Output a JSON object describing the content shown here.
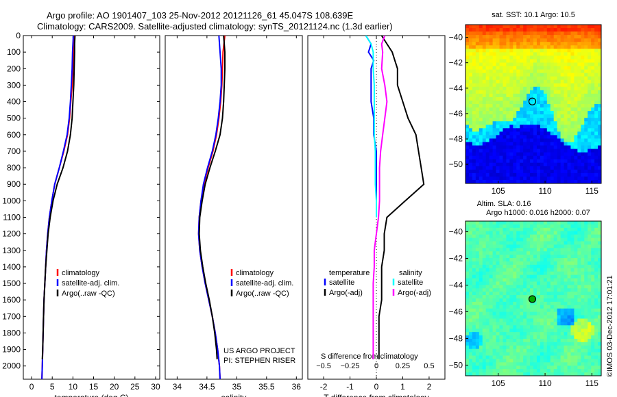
{
  "header": {
    "line1": "Argo profile: AO 1901407_103 25-Nov-2012 20121126_61 45.047S 108.639E",
    "line2": "Climatology: CARS2009. Satellite-adjusted climatology: synTS_20121124.nc (1.3d earlier)"
  },
  "footer": {
    "project": "US ARGO PROJECT",
    "pi": "PI: STEPHEN RISER",
    "imos": "©IMOS 03-Dec-2012 17:01:21"
  },
  "colors": {
    "climatology": "#ff0000",
    "satellite": "#0000ff",
    "argo": "#000000",
    "salinity_clim": "#ff00ff",
    "salinity_sat": "#00ffff"
  },
  "chart_data": [
    {
      "type": "line",
      "xlabel": "temperature (deg C)",
      "ylabel": "",
      "xlim": [
        -2,
        31
      ],
      "ylim": [
        2080,
        0
      ],
      "xticks": [
        0,
        5,
        10,
        15,
        20,
        25,
        30
      ],
      "yticks": [
        0,
        100,
        200,
        300,
        400,
        500,
        600,
        700,
        800,
        900,
        1000,
        1100,
        1200,
        1300,
        1400,
        1500,
        1600,
        1700,
        1800,
        1900,
        2000
      ],
      "legend": [
        "climatology",
        "satellite-adj. clim.",
        "Argo(..raw -QC)"
      ],
      "legend_position": "lower-right",
      "series": [
        {
          "name": "climatology",
          "color": "#ff0000",
          "y": [
            0,
            50,
            100,
            200,
            300,
            400,
            500,
            600,
            700,
            800,
            900,
            1000,
            1100,
            1200,
            1300,
            1400,
            1500,
            1600,
            1700,
            1800,
            1900,
            2000,
            2080
          ],
          "x": [
            10.4,
            10.3,
            10.2,
            10.0,
            9.8,
            9.5,
            9.2,
            8.7,
            7.8,
            6.7,
            5.6,
            4.9,
            4.3,
            3.9,
            3.6,
            3.4,
            3.2,
            3.0,
            2.9,
            2.8,
            2.7,
            2.6,
            2.5
          ]
        },
        {
          "name": "satellite-adj. clim.",
          "color": "#0000ff",
          "y": [
            0,
            50,
            100,
            200,
            300,
            400,
            500,
            600,
            700,
            800,
            900,
            1000,
            1100,
            1200,
            1300,
            1400,
            1500,
            1600,
            1700,
            1800,
            1900,
            2000,
            2080
          ],
          "x": [
            10.1,
            10.0,
            9.9,
            9.8,
            9.6,
            9.4,
            9.1,
            8.6,
            7.7,
            6.7,
            5.6,
            4.9,
            4.3,
            3.9,
            3.6,
            3.4,
            3.2,
            3.0,
            2.9,
            2.8,
            2.7,
            2.6,
            2.5
          ]
        },
        {
          "name": "Argo(..raw -QC)",
          "color": "#000000",
          "y": [
            0,
            50,
            100,
            200,
            300,
            400,
            500,
            600,
            700,
            800,
            900,
            1000,
            1100,
            1200,
            1300,
            1400,
            1500,
            1600,
            1700,
            1800,
            1900,
            1960
          ],
          "x": [
            10.5,
            10.4,
            10.4,
            10.3,
            10.2,
            10.0,
            9.8,
            9.4,
            8.7,
            7.6,
            6.2,
            5.2,
            4.5,
            4.0,
            3.7,
            3.4,
            3.2,
            3.0,
            2.9,
            2.8,
            2.7,
            2.6
          ]
        }
      ]
    },
    {
      "type": "line",
      "xlabel": "salinity",
      "ylabel": "",
      "xlim": [
        33.8,
        36.1
      ],
      "ylim": [
        2080,
        0
      ],
      "xticks": [
        34,
        34.5,
        35,
        35.5,
        36
      ],
      "xticklabels": [
        "34",
        "34.5",
        "35",
        "35.5",
        "36"
      ],
      "legend": [
        "climatology",
        "satellite-adj. clim.",
        "Argo(..raw -QC)"
      ],
      "legend_position": "lower-right",
      "series": [
        {
          "name": "climatology",
          "color": "#ff0000",
          "y": [
            0,
            100,
            200,
            300,
            400,
            500,
            600,
            700,
            800,
            900,
            1000,
            1100,
            1200,
            1300,
            1400,
            1500,
            1600,
            1700,
            1800,
            1900,
            2000,
            2080
          ],
          "x": [
            34.8,
            34.77,
            34.76,
            34.75,
            34.73,
            34.7,
            34.66,
            34.6,
            34.52,
            34.45,
            34.4,
            34.37,
            34.36,
            34.38,
            34.42,
            34.47,
            34.53,
            34.59,
            34.64,
            34.68,
            34.71,
            34.72
          ]
        },
        {
          "name": "satellite-adj. clim.",
          "color": "#0000ff",
          "y": [
            0,
            100,
            200,
            300,
            400,
            500,
            600,
            700,
            800,
            900,
            1000,
            1100,
            1200,
            1300,
            1400,
            1500,
            1600,
            1700,
            1800,
            1900,
            2000,
            2080
          ],
          "x": [
            34.7,
            34.72,
            34.74,
            34.74,
            34.72,
            34.69,
            34.65,
            34.59,
            34.51,
            34.44,
            34.4,
            34.37,
            34.36,
            34.38,
            34.42,
            34.47,
            34.53,
            34.59,
            34.64,
            34.68,
            34.71,
            34.72
          ]
        },
        {
          "name": "Argo(..raw -QC)",
          "color": "#000000",
          "y": [
            0,
            100,
            200,
            300,
            400,
            500,
            600,
            700,
            800,
            900,
            1000,
            1100,
            1200,
            1300,
            1400,
            1500,
            1600,
            1700,
            1800,
            1900,
            1960
          ],
          "x": [
            34.78,
            34.8,
            34.8,
            34.79,
            34.78,
            34.76,
            34.72,
            34.64,
            34.55,
            34.47,
            34.42,
            34.38,
            34.37,
            34.39,
            34.43,
            34.48,
            34.54,
            34.59,
            34.63,
            34.66,
            34.67
          ]
        }
      ]
    },
    {
      "type": "line",
      "xlabel": "T difference from climatology",
      "top_axis_label": "S difference from climatology",
      "ylabel": "",
      "xlim": [
        -2.6,
        2.6
      ],
      "ylim": [
        2080,
        0
      ],
      "xticks": [
        -2,
        -1,
        0,
        1,
        2
      ],
      "s_xticks": [
        -0.5,
        -0.25,
        0,
        0.25,
        0.5
      ],
      "s_xticklabels": [
        "−0.5",
        "−0.25",
        "0",
        "0.25",
        "0.5"
      ],
      "s_scale": 4,
      "legend_groups": [
        {
          "title": "temperature",
          "entries": [
            "satellite",
            "Argo(-adj)"
          ]
        },
        {
          "title": "salinity",
          "entries": [
            "satellite",
            "Argo(-adj)"
          ]
        }
      ],
      "legend_position": "lower-right",
      "series": [
        {
          "name": "satellite",
          "group": "temperature",
          "color": "#0000ff",
          "y": [
            0,
            50,
            100,
            150,
            200,
            300,
            400,
            500,
            600,
            700,
            800,
            900,
            1000,
            1100
          ],
          "x": [
            -0.4,
            -0.2,
            -0.3,
            -0.1,
            -0.2,
            -0.2,
            -0.2,
            -0.1,
            -0.1,
            0.0,
            0.0,
            0.0,
            0.0,
            0.0
          ]
        },
        {
          "name": "Argo(-adj)",
          "group": "temperature",
          "color": "#000000",
          "y": [
            0,
            50,
            100,
            150,
            200,
            300,
            400,
            500,
            600,
            700,
            800,
            900,
            1000,
            1100,
            1200,
            1300,
            1400,
            1500,
            1600,
            1700,
            1800,
            1900,
            1960
          ],
          "x": [
            0.2,
            0.4,
            0.6,
            0.7,
            0.8,
            0.8,
            1.0,
            1.2,
            1.5,
            1.6,
            1.7,
            1.8,
            1.1,
            0.4,
            0.3,
            0.3,
            0.2,
            0.2,
            0.2,
            0.1,
            0.1,
            0.1,
            0.1
          ]
        },
        {
          "name": "satellite",
          "group": "salinity",
          "color": "#00ffff",
          "y": [
            0,
            50,
            100,
            200,
            300,
            400,
            500,
            600,
            700,
            800,
            900,
            1000,
            1100
          ],
          "x": [
            -0.1,
            -0.05,
            -0.03,
            -0.03,
            -0.02,
            -0.02,
            -0.02,
            -0.02,
            -0.01,
            -0.01,
            -0.01,
            0.0,
            0.0
          ]
        },
        {
          "name": "Argo(-adj)",
          "group": "salinity",
          "color": "#ff00ff",
          "y": [
            0,
            50,
            100,
            200,
            300,
            400,
            500,
            600,
            700,
            800,
            900,
            1000,
            1100,
            1200,
            1300,
            1400,
            1500,
            1600,
            1700,
            1800,
            1900,
            1960
          ],
          "x": [
            0.08,
            0.05,
            0.06,
            0.05,
            0.08,
            0.1,
            0.08,
            0.06,
            0.04,
            0.03,
            0.03,
            0.03,
            0.02,
            0.0,
            -0.02,
            -0.02,
            -0.03,
            -0.03,
            -0.03,
            -0.03,
            -0.03,
            -0.03
          ]
        }
      ]
    },
    {
      "type": "heatmap",
      "title": "sat. SST: 10.1  Argo: 10.5",
      "xlim": [
        101.5,
        116
      ],
      "ylim": [
        -51.5,
        -39
      ],
      "xticks": [
        105,
        110,
        115
      ],
      "yticks": [
        -40,
        -42,
        -44,
        -46,
        -48,
        -50
      ],
      "yticklabels": [
        "−40",
        "−42",
        "−44",
        "−46",
        "−48",
        "−50"
      ],
      "marker": {
        "lon": 108.639,
        "lat": -45.047
      }
    },
    {
      "type": "heatmap",
      "title_line1": "Altim. SLA: 0.16",
      "title_line2": "Argo h1000: 0.016 h2000: 0.07",
      "xlim": [
        101.5,
        116
      ],
      "ylim": [
        -50.8,
        -39.2
      ],
      "xticks": [
        105,
        110,
        115
      ],
      "yticks": [
        -40,
        -42,
        -44,
        -46,
        -48,
        -50
      ],
      "yticklabels": [
        "−40",
        "−42",
        "−44",
        "−46",
        "−48",
        "−50"
      ],
      "marker": {
        "lon": 108.639,
        "lat": -45.047
      }
    }
  ]
}
